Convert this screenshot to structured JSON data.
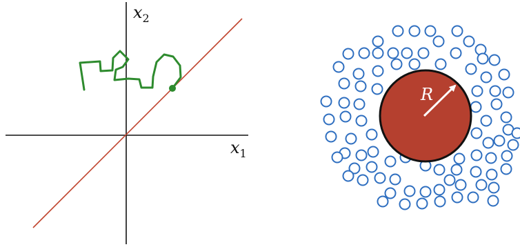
{
  "left_panel": {
    "x_axis_label": {
      "symbol": "x",
      "subscript": "1"
    },
    "y_axis_label": {
      "symbol": "x",
      "subscript": "2"
    },
    "diagonal_line_color": "#c0442e",
    "walk_color": "#2e8b2e"
  },
  "right_panel": {
    "radius_label": "R",
    "central_disk_color": "#b5402f",
    "particle_color": "#2f6fc0",
    "particle_count": 88
  }
}
